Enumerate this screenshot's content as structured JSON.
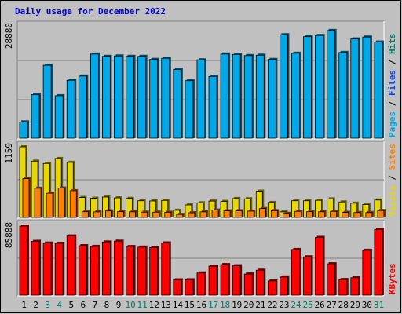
{
  "page": {
    "title": "Daily usage for December 2022"
  },
  "colors": {
    "background": "#c0c0c0",
    "title": "#0000c0",
    "pages": "#00a8e8",
    "files": "#0040ff",
    "hits": "#007d60",
    "visits": "#e8d800",
    "sites": "#ff8000",
    "kbytes": "#ff0000",
    "weekend_day": "#007d60",
    "weekday_day": "#000000"
  },
  "chart_data": {
    "type": "bar",
    "title": "Daily usage for December 2022",
    "x": [
      1,
      2,
      3,
      4,
      5,
      6,
      7,
      8,
      9,
      10,
      11,
      12,
      13,
      14,
      15,
      16,
      17,
      18,
      19,
      20,
      21,
      22,
      23,
      24,
      25,
      26,
      27,
      28,
      29,
      30,
      31
    ],
    "x_weekend": [
      3,
      4,
      10,
      11,
      17,
      18,
      24,
      25,
      31
    ],
    "panels": [
      {
        "id": "hits",
        "axis_max_label": "28880",
        "ymax": 28880,
        "series": [
          {
            "name": "Pages",
            "color": "#00a8e8",
            "values": [
              4200,
              11300,
              18900,
              11000,
              15000,
              16100,
              21800,
              21200,
              21300,
              21200,
              21200,
              20400,
              20700,
              17800,
              14900,
              20300,
              16000,
              21800,
              21700,
              21400,
              21500,
              20400,
              26800,
              22000,
              26300,
              26600,
              27900,
              22200,
              25700,
              26200,
              24900
            ]
          },
          {
            "name": "Files",
            "color": "#0040ff",
            "values": []
          },
          {
            "name": "Hits",
            "color": "#007d60",
            "values": []
          }
        ]
      },
      {
        "id": "visits",
        "axis_max_label": "1159",
        "ymax": 1159,
        "series": [
          {
            "name": "Visits",
            "color": "#e8d800",
            "values": [
              1159,
              923,
              885,
              967,
              903,
              327,
              315,
              335,
              321,
              313,
              274,
              271,
              280,
              118,
              206,
              241,
              269,
              264,
              311,
              307,
              431,
              246,
              92,
              274,
              274,
              281,
              304,
              254,
              234,
              213,
              286
            ]
          },
          {
            "name": "Sites",
            "color": "#ff8000",
            "values": [
              637,
              479,
              397,
              482,
              439,
              94,
              92,
              107,
              95,
              92,
              87,
              87,
              85,
              50,
              77,
              92,
              121,
              108,
              111,
              104,
              146,
              111,
              67,
              100,
              94,
              93,
              100,
              83,
              80,
              80,
              113
            ]
          }
        ]
      },
      {
        "id": "kbytes",
        "axis_max_label": "85888",
        "ymax": 85888,
        "series": [
          {
            "name": "KBytes",
            "color": "#ff0000",
            "values": [
              85888,
              66900,
              64700,
              64400,
              73600,
              61500,
              60600,
              66100,
              67100,
              60400,
              59700,
              59200,
              64900,
              19000,
              19100,
              27600,
              36000,
              38000,
              36500,
              26300,
              31000,
              17700,
              22600,
              56700,
              47600,
              71800,
              39000,
              19400,
              21700,
              55700,
              81600
            ]
          }
        ]
      }
    ]
  }
}
